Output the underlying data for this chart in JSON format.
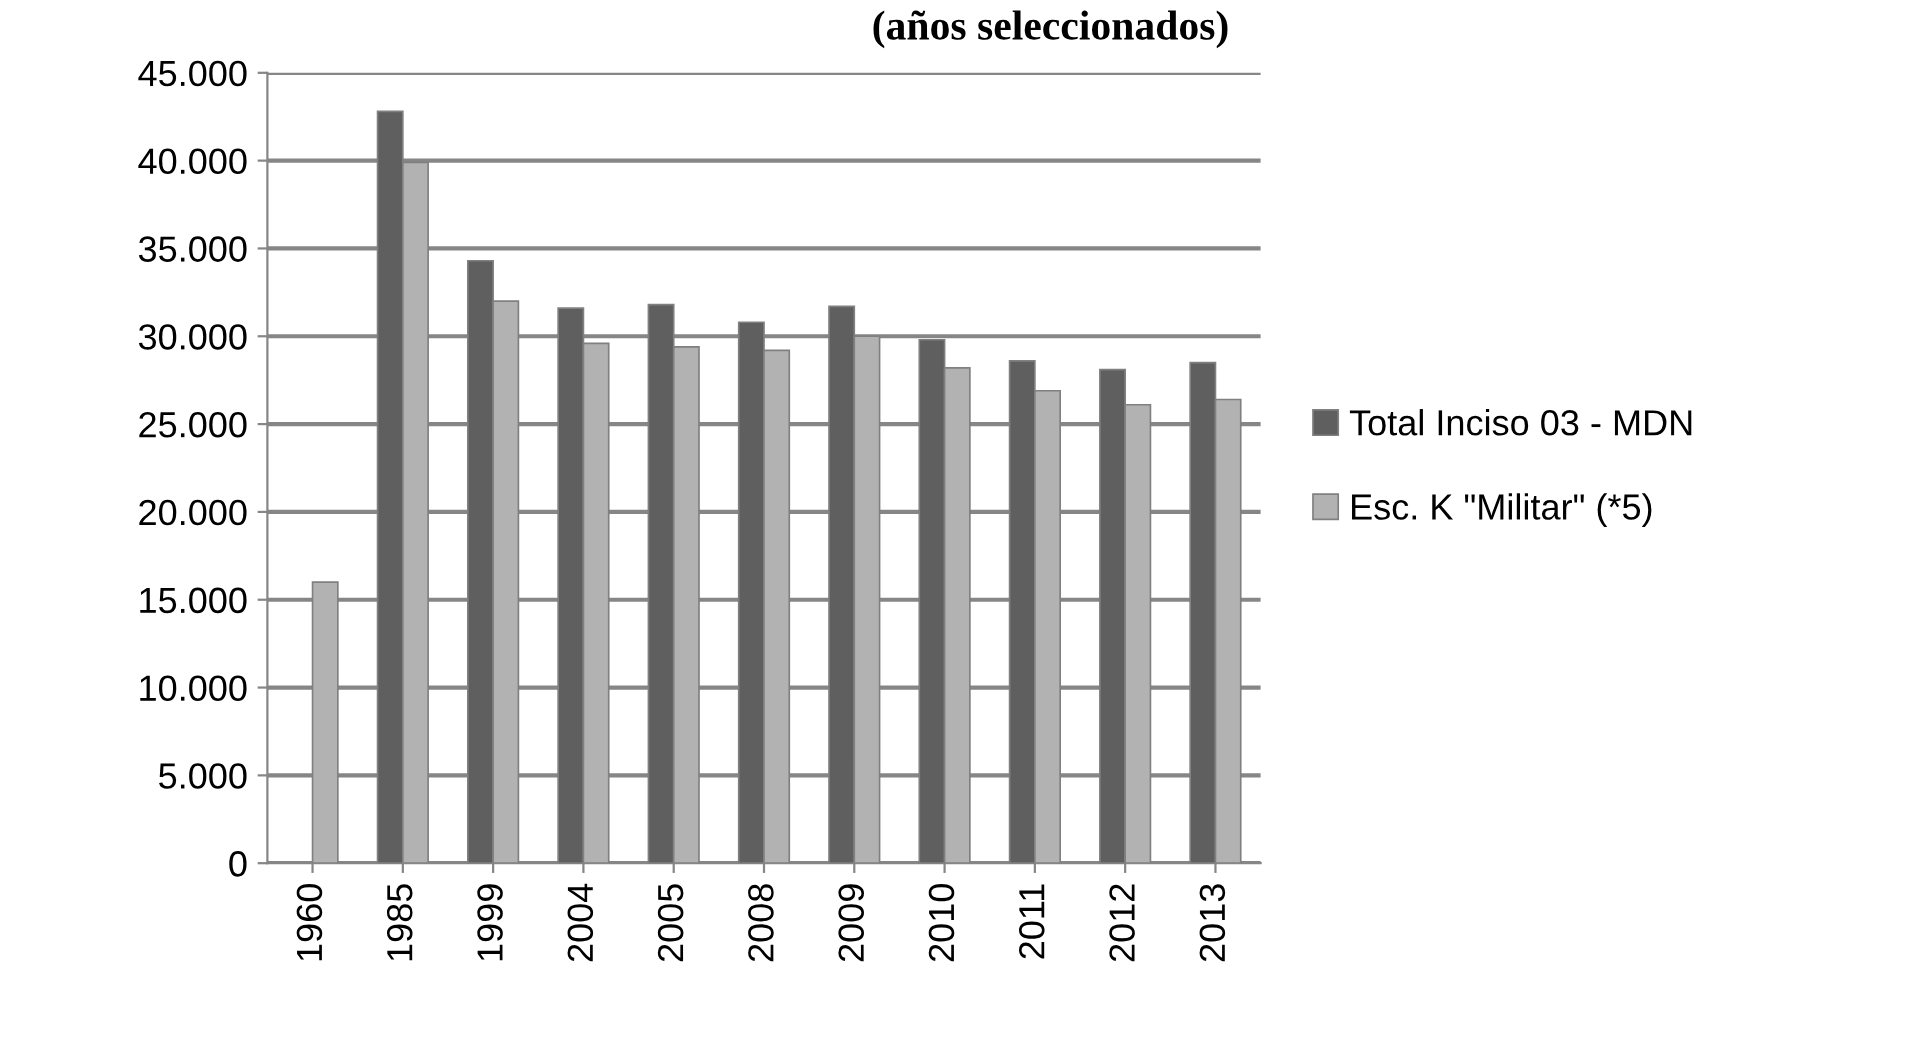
{
  "chart_data": {
    "type": "bar",
    "title": "(años seleccionados)",
    "categories": [
      "1960",
      "1985",
      "1999",
      "2004",
      "2005",
      "2008",
      "2009",
      "2010",
      "2011",
      "2012",
      "2013"
    ],
    "series": [
      {
        "name": "Total Inciso 03 - MDN",
        "color": "#5f5f5f",
        "values": [
          null,
          42800,
          34300,
          31600,
          31800,
          30800,
          31700,
          29800,
          28600,
          28100,
          28500
        ]
      },
      {
        "name": "Esc. K \"Militar\" (*5)",
        "color": "#b2b2b2",
        "values": [
          16000,
          39900,
          32000,
          29600,
          29400,
          29200,
          30000,
          28200,
          26900,
          26100,
          26400
        ]
      }
    ],
    "ylim": [
      0,
      45000
    ],
    "yticks": [
      0,
      {
        "value": 5000,
        "label": "5.000"
      },
      {
        "value": 10000,
        "label": "10.000"
      },
      {
        "value": 15000,
        "label": "15.000"
      },
      {
        "value": 20000,
        "label": "20.000"
      },
      {
        "value": 25000,
        "label": "25.000"
      },
      {
        "value": 30000,
        "label": "30.000"
      },
      {
        "value": 35000,
        "label": "35.000"
      },
      {
        "value": 40000,
        "label": "40.000"
      },
      {
        "value": 45000,
        "label": "45.000"
      }
    ],
    "grid": "y",
    "legend": "right"
  }
}
